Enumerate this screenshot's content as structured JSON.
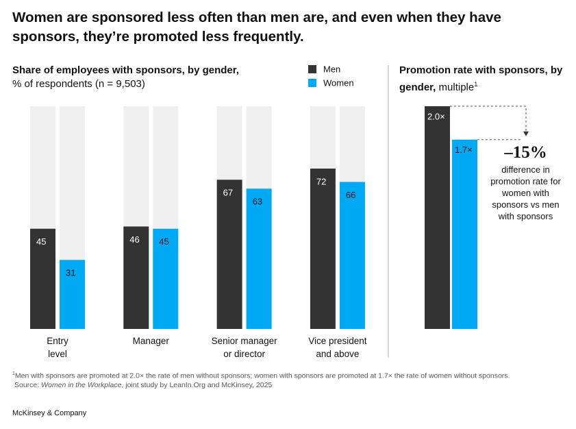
{
  "title": "Women are sponsored less often than men are, and even when they have sponsors, they’re promoted less frequently.",
  "chart_data": [
    {
      "type": "bar",
      "title": "Share of employees with sponsors, by gender,",
      "subtitle": "% of respondents (n = 9,503)",
      "categories": [
        "Entry\nlevel",
        "Manager",
        "Senior manager\nor director",
        "Vice president\nand above"
      ],
      "series": [
        {
          "name": "Men",
          "color": "#333333",
          "values": [
            45,
            46,
            67,
            72
          ]
        },
        {
          "name": "Women",
          "color": "#00a9f4",
          "values": [
            31,
            45,
            63,
            66
          ]
        }
      ],
      "ylim": [
        0,
        100
      ],
      "background": "#efefef"
    },
    {
      "type": "bar",
      "title": "Promotion rate with sponsors, by gender,",
      "subtitle": "multiple",
      "title_marker": "1",
      "categories": [
        null
      ],
      "series": [
        {
          "color": "#333333",
          "values": [
            2.0
          ],
          "value_labels": [
            "2.0×"
          ]
        },
        {
          "color": "#00a9f4",
          "values": [
            1.7
          ],
          "value_labels": [
            "1.7×"
          ]
        }
      ],
      "ylim": [
        0,
        2.0
      ],
      "annotation": {
        "value_text": "–15%",
        "text": "difference in promotion rate for women with sponsors vs men with sponsors"
      }
    }
  ],
  "footnote": {
    "marker": "1",
    "text": "Men with sponsors are promoted at 2.0× the rate of men without sponsors; women with sponsors are promoted at 1.7× the rate of women without sponsors."
  },
  "source": {
    "label": "Source:",
    "title": "Women in the Workplace",
    "text": ", joint study by LeanIn.Org and McKinsey, 2025"
  },
  "brand": "McKinsey & Company"
}
